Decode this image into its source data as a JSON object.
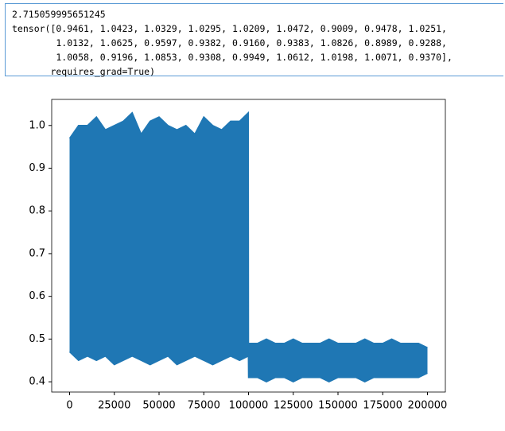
{
  "output": {
    "lines": [
      "2.715059995651245",
      "tensor([0.9461, 1.0423, 1.0329, 1.0295, 1.0209, 1.0472, 0.9009, 0.9478, 1.0251,",
      "        1.0132, 1.0625, 0.9597, 0.9382, 0.9160, 0.9383, 1.0826, 0.8989, 0.9288,",
      "        1.0058, 0.9196, 1.0853, 0.9308, 0.9949, 1.0612, 1.0198, 1.0071, 0.9370],",
      "       requires_grad=True)"
    ]
  },
  "chart_data": {
    "type": "band",
    "x": [
      0,
      5000,
      10000,
      15000,
      20000,
      25000,
      30000,
      35000,
      40000,
      45000,
      50000,
      55000,
      60000,
      65000,
      70000,
      75000,
      80000,
      85000,
      90000,
      95000,
      99900,
      100000,
      105000,
      110000,
      115000,
      120000,
      125000,
      130000,
      135000,
      140000,
      145000,
      150000,
      155000,
      160000,
      165000,
      170000,
      175000,
      180000,
      185000,
      190000,
      195000,
      200000
    ],
    "series": [
      {
        "color": "#1f77b4",
        "values": [
          0.97,
          1.0,
          1.0,
          1.02,
          0.99,
          1.0,
          1.01,
          1.03,
          0.98,
          1.01,
          1.02,
          1.0,
          0.99,
          1.0,
          0.98,
          1.02,
          1.0,
          0.99,
          1.01,
          1.01,
          1.03,
          0.49,
          0.49,
          0.5,
          0.49,
          0.49,
          0.5,
          0.49,
          0.49,
          0.49,
          0.5,
          0.49,
          0.49,
          0.49,
          0.5,
          0.49,
          0.49,
          0.5,
          0.49,
          0.49,
          0.49,
          0.48
        ]
      },
      {
        "color": "#1f77b4",
        "values": [
          0.47,
          0.45,
          0.46,
          0.45,
          0.46,
          0.44,
          0.45,
          0.46,
          0.45,
          0.44,
          0.45,
          0.46,
          0.44,
          0.45,
          0.46,
          0.45,
          0.44,
          0.45,
          0.46,
          0.45,
          0.46,
          0.41,
          0.41,
          0.4,
          0.41,
          0.41,
          0.4,
          0.41,
          0.41,
          0.41,
          0.4,
          0.41,
          0.41,
          0.41,
          0.4,
          0.41,
          0.41,
          0.41,
          0.41,
          0.41,
          0.41,
          0.42
        ]
      }
    ],
    "xlim": [
      -10000,
      210000
    ],
    "ylim": [
      0.376,
      1.061
    ],
    "xticks": [
      0,
      25000,
      50000,
      75000,
      100000,
      125000,
      150000,
      175000,
      200000
    ],
    "yticks": [
      0.4,
      0.5,
      0.6,
      0.7,
      0.8,
      0.9,
      {
        "value": 1,
        "label": "1.0"
      }
    ]
  }
}
